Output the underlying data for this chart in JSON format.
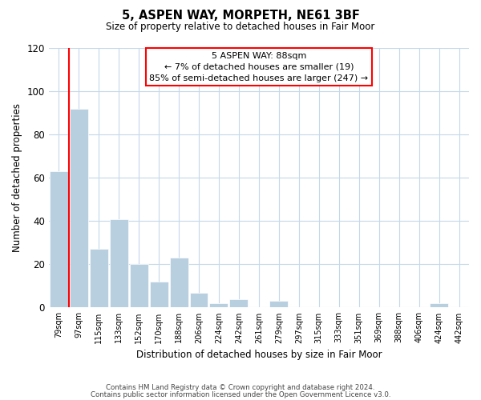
{
  "title": "5, ASPEN WAY, MORPETH, NE61 3BF",
  "subtitle": "Size of property relative to detached houses in Fair Moor",
  "xlabel": "Distribution of detached houses by size in Fair Moor",
  "ylabel": "Number of detached properties",
  "bar_color": "#b8cfe0",
  "categories": [
    "79sqm",
    "97sqm",
    "115sqm",
    "133sqm",
    "152sqm",
    "170sqm",
    "188sqm",
    "206sqm",
    "224sqm",
    "242sqm",
    "261sqm",
    "279sqm",
    "297sqm",
    "315sqm",
    "333sqm",
    "351sqm",
    "369sqm",
    "388sqm",
    "406sqm",
    "424sqm",
    "442sqm"
  ],
  "values": [
    63,
    92,
    27,
    41,
    20,
    12,
    23,
    7,
    2,
    4,
    0,
    3,
    0,
    0,
    0,
    0,
    0,
    0,
    0,
    2,
    0
  ],
  "ylim": [
    0,
    120
  ],
  "yticks": [
    0,
    20,
    40,
    60,
    80,
    100,
    120
  ],
  "annotation_line1": "5 ASPEN WAY: 88sqm",
  "annotation_line2": "← 7% of detached houses are smaller (19)",
  "annotation_line3": "85% of semi-detached houses are larger (247) →",
  "red_line_x": -0.07,
  "footer_line1": "Contains HM Land Registry data © Crown copyright and database right 2024.",
  "footer_line2": "Contains public sector information licensed under the Open Government Licence v3.0.",
  "background_color": "#ffffff",
  "grid_color": "#c5d8ea"
}
